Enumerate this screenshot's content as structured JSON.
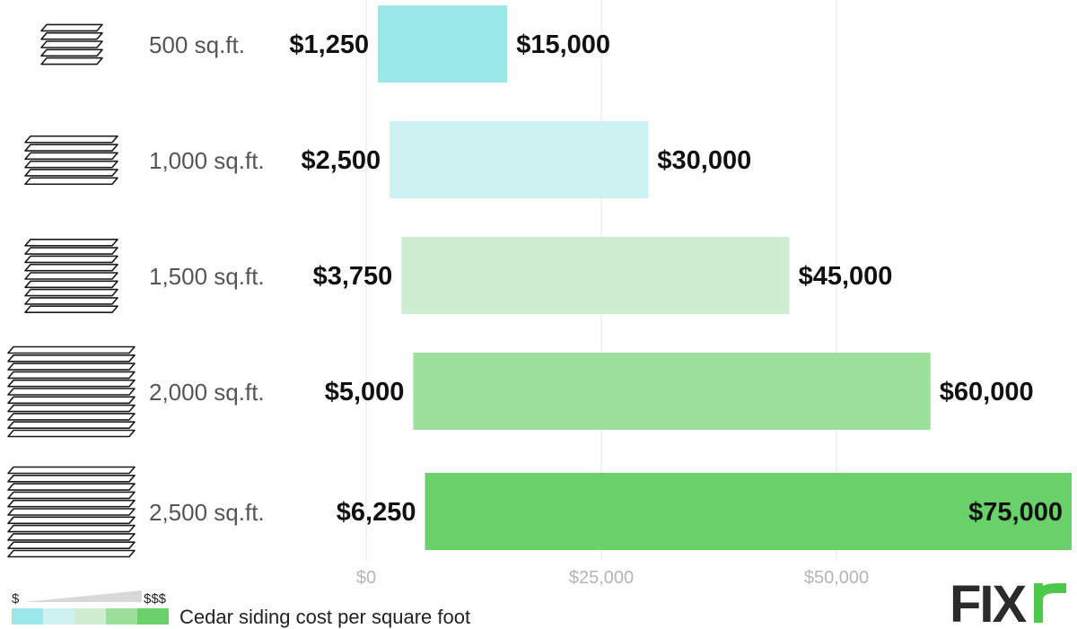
{
  "chart_data": {
    "type": "bar",
    "orientation": "horizontal",
    "range_bars": true,
    "categories": [
      "500 sq.ft.",
      "1,000 sq.ft.",
      "1,500 sq.ft.",
      "2,000 sq.ft.",
      "2,500 sq.ft."
    ],
    "low_values": [
      1250,
      2500,
      3750,
      5000,
      6250
    ],
    "high_values": [
      15000,
      30000,
      45000,
      60000,
      75000
    ],
    "low_labels": [
      "$1,250",
      "$2,500",
      "$3,750",
      "$5,000",
      "$6,250"
    ],
    "high_labels": [
      "$15,000",
      "$30,000",
      "$45,000",
      "$60,000",
      "$75,000"
    ],
    "bar_colors": [
      "#9ae8e8",
      "#cdf2f1",
      "#cfeed1",
      "#9be09b",
      "#68d16a"
    ],
    "x_ticks": [
      0,
      25000,
      50000
    ],
    "x_tick_labels": [
      "$0",
      "$25,000",
      "$50,000"
    ],
    "xlim": [
      0,
      75000
    ],
    "grid": true
  },
  "legend": {
    "label": "Cedar siding cost per square foot",
    "low_marker": "$",
    "high_marker": "$$$",
    "colors": [
      "#9ae8e8",
      "#cdf2f1",
      "#cfeed1",
      "#9be09b",
      "#68d16a"
    ]
  },
  "logo": {
    "text": "FIXR",
    "color": "#2b2b2b",
    "accent": "#4cc94c"
  }
}
